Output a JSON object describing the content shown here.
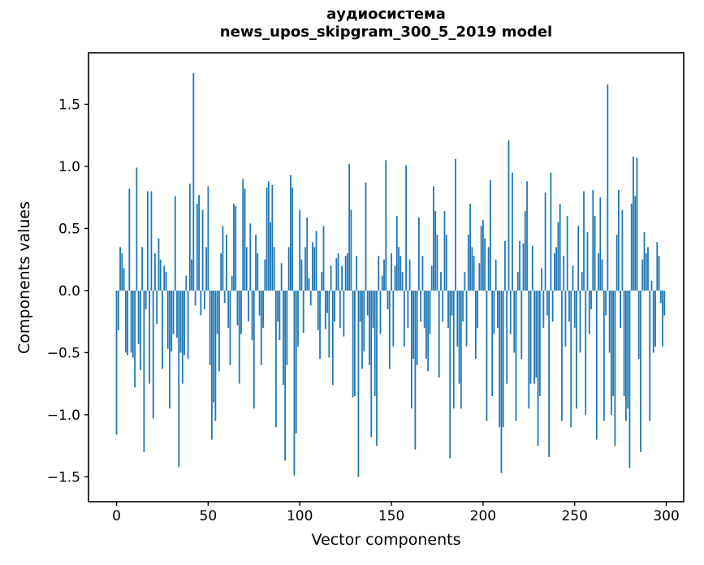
{
  "chart_data": {
    "type": "bar",
    "title_lines": [
      "аудиосистема",
      "news_upos_skipgram_300_5_2019 model"
    ],
    "xlabel": "Vector components",
    "ylabel": "Components values",
    "bar_color": "#1f77b4",
    "axis_color": "#000000",
    "background_color": "#ffffff",
    "grid": false,
    "legend": null,
    "x_start": 0,
    "xlim": [
      -15.3,
      309.5
    ],
    "ylim": [
      -1.7,
      1.915
    ],
    "xticks": [
      0,
      50,
      100,
      150,
      200,
      250,
      300
    ],
    "yticks": [
      -1.5,
      -1.0,
      -0.5,
      0.0,
      0.5,
      1.0,
      1.5
    ],
    "values": [
      -1.16,
      -0.32,
      0.35,
      0.3,
      0.18,
      -0.5,
      -0.52,
      0.82,
      -0.5,
      -0.54,
      -0.78,
      0.99,
      -0.43,
      -0.64,
      0.35,
      -1.3,
      -0.15,
      0.8,
      -0.75,
      0.8,
      -1.03,
      0.3,
      -0.27,
      0.42,
      0.25,
      -0.63,
      0.2,
      0.15,
      -0.47,
      -0.95,
      -0.49,
      -0.35,
      0.76,
      -0.38,
      -1.42,
      -0.5,
      -0.75,
      -0.52,
      0.12,
      -0.55,
      0.86,
      0.25,
      1.75,
      -0.12,
      0.7,
      0.77,
      -0.2,
      0.65,
      -0.15,
      0.35,
      0.84,
      -0.6,
      -1.2,
      -0.9,
      -1.05,
      -0.35,
      -0.65,
      0.3,
      0.52,
      -0.1,
      0.45,
      -0.3,
      -0.6,
      0.12,
      0.7,
      0.68,
      -0.28,
      -0.75,
      -0.35,
      0.9,
      0.82,
      0.35,
      -0.25,
      0.54,
      -0.4,
      -0.95,
      0.45,
      0.3,
      -0.2,
      -0.6,
      -0.3,
      0.25,
      0.83,
      0.88,
      0.55,
      0.85,
      0.35,
      -1.1,
      -0.25,
      -0.4,
      0.22,
      -0.76,
      -1.37,
      -0.6,
      0.35,
      0.93,
      0.83,
      -1.49,
      -1.15,
      -0.45,
      0.65,
      0.25,
      -0.34,
      0.35,
      0.59,
      0.1,
      -0.12,
      0.39,
      0.35,
      0.48,
      -0.32,
      -0.55,
      0.15,
      0.52,
      -0.31,
      -0.18,
      -0.54,
      0.2,
      -0.76,
      -0.25,
      0.26,
      0.3,
      -0.3,
      0.2,
      -0.37,
      0.28,
      0.3,
      1.02,
      0.65,
      -0.86,
      -0.85,
      0.28,
      -1.5,
      -0.25,
      -0.63,
      -0.49,
      0.87,
      -0.2,
      -0.6,
      -1.18,
      -0.3,
      -0.85,
      -1.25,
      0.28,
      -0.35,
      0.12,
      0.25,
      1.05,
      -0.15,
      -0.63,
      0.3,
      -0.45,
      0.2,
      0.6,
      0.35,
      0.28,
      0.15,
      -0.45,
      1.01,
      -0.3,
      0.25,
      -0.95,
      -0.55,
      -1.28,
      -0.6,
      0.59,
      -0.25,
      0.28,
      -0.3,
      -0.55,
      -0.65,
      -0.35,
      0.2,
      0.84,
      0.64,
      0.45,
      -0.7,
      0.15,
      -0.25,
      0.64,
      0.45,
      -0.3,
      -1.35,
      -0.2,
      -0.95,
      1.06,
      -0.45,
      -0.75,
      -0.95,
      -0.25,
      0.15,
      -0.45,
      0.45,
      0.7,
      0.35,
      0.28,
      -0.55,
      -0.3,
      0.22,
      0.52,
      0.57,
      0.42,
      -1.05,
      0.35,
      0.89,
      -0.85,
      -0.35,
      0.25,
      -0.3,
      -1.1,
      -1.47,
      -1.1,
      0.4,
      -0.75,
      1.21,
      -0.35,
      0.95,
      -0.5,
      -1.05,
      0.15,
      0.4,
      -0.55,
      0.38,
      0.64,
      0.88,
      -0.95,
      -0.75,
      0.36,
      -0.75,
      -0.7,
      -1.25,
      -0.85,
      0.18,
      -0.3,
      0.79,
      -0.2,
      -1.34,
      0.95,
      -0.25,
      0.3,
      0.35,
      0.55,
      0.7,
      -1.05,
      0.28,
      -0.45,
      0.6,
      -0.25,
      -1.1,
      0.2,
      -0.3,
      -0.95,
      0.52,
      -0.5,
      0.15,
      0.8,
      -1.0,
      0.47,
      -0.35,
      -0.15,
      0.81,
      0.6,
      -1.2,
      0.3,
      0.75,
      0.25,
      -1.05,
      -0.2,
      1.66,
      -0.5,
      -1.0,
      -0.85,
      -1.25,
      0.45,
      0.81,
      -0.3,
      0.65,
      -0.85,
      -1.05,
      -0.95,
      -1.43,
      0.7,
      1.08,
      0.76,
      1.07,
      -0.55,
      -1.3,
      0.25,
      0.47,
      0.3,
      0.35,
      -1.05,
      0.08,
      -0.5,
      -0.45,
      0.39,
      0.28,
      -0.1,
      -0.45,
      -0.2
    ]
  }
}
